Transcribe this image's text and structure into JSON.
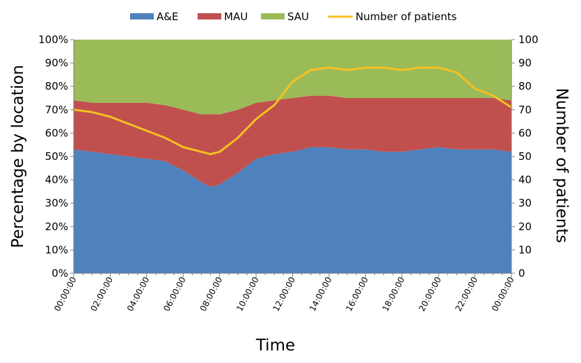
{
  "chart_data": {
    "type": "area",
    "xlabel": "Time",
    "ylabel": "Percentage by location",
    "y2label": "Number of patients",
    "x_hours": [
      0,
      1,
      2,
      3,
      4,
      5,
      6,
      7,
      7.5,
      8,
      9,
      10,
      11,
      12,
      13,
      14,
      15,
      16,
      17,
      18,
      19,
      20,
      21,
      22,
      23,
      24
    ],
    "x_ticks": [
      "00:00:00",
      "02:00:00",
      "04:00:00",
      "06:00:00",
      "08:00:00",
      "10:00:00",
      "12:00:00",
      "14:00:00",
      "16:00:00",
      "18:00:00",
      "20:00:00",
      "22:00:00",
      "00:00:00"
    ],
    "ylim": [
      0,
      100
    ],
    "y_ticks": [
      "0%",
      "10%",
      "20%",
      "30%",
      "40%",
      "50%",
      "60%",
      "70%",
      "80%",
      "90%",
      "100%"
    ],
    "y2lim": [
      0,
      100
    ],
    "y2_ticks": [
      "0",
      "10",
      "20",
      "30",
      "40",
      "50",
      "60",
      "70",
      "80",
      "90",
      "100"
    ],
    "legend": [
      "A&E",
      "MAU",
      "SAU",
      "Number of patients"
    ],
    "legend_position": "top",
    "grid": false,
    "series": [
      {
        "name": "A&E",
        "kind": "stacked-area",
        "axis": "left",
        "color": "#4f81bd",
        "values": [
          53,
          52,
          51,
          50,
          49,
          48,
          44,
          39,
          37,
          38,
          43,
          49,
          51,
          52,
          54,
          54,
          53,
          53,
          52,
          52,
          53,
          54,
          53,
          53,
          53,
          52
        ]
      },
      {
        "name": "MAU",
        "kind": "stacked-area",
        "axis": "left",
        "color": "#c0504d",
        "values": [
          21,
          21,
          22,
          23,
          24,
          24,
          26,
          29,
          31,
          30,
          27,
          24,
          23,
          23,
          22,
          22,
          22,
          22,
          23,
          23,
          22,
          21,
          22,
          22,
          22,
          22
        ]
      },
      {
        "name": "SAU",
        "kind": "stacked-area",
        "axis": "left",
        "color": "#9bbb59",
        "values": [
          26,
          27,
          27,
          27,
          27,
          28,
          30,
          32,
          32,
          32,
          30,
          27,
          26,
          25,
          24,
          24,
          25,
          25,
          25,
          25,
          25,
          25,
          25,
          25,
          25,
          26
        ]
      },
      {
        "name": "Number of patients",
        "kind": "line",
        "axis": "right",
        "color": "#f5c023",
        "values": [
          70,
          69,
          67,
          64,
          61,
          58,
          54,
          52,
          51,
          52,
          58,
          66,
          72,
          82,
          87,
          88,
          87,
          88,
          88,
          87,
          88,
          88,
          86,
          79,
          76,
          71
        ]
      }
    ]
  }
}
